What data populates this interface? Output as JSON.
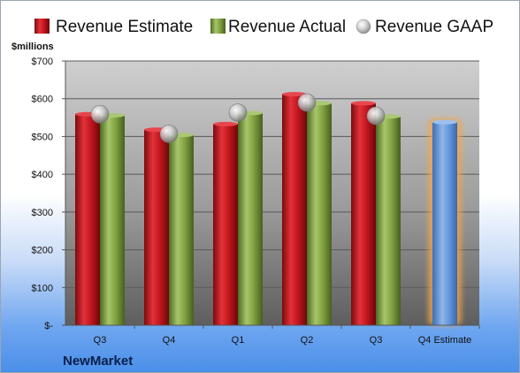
{
  "company": "NewMarket",
  "chart_data": {
    "type": "bar",
    "unit_label": "$millions",
    "categories": [
      "Q3",
      "Q4",
      "Q1",
      "Q2",
      "Q3",
      "Q4 Estimate"
    ],
    "series": [
      {
        "name": "Revenue Estimate",
        "values": [
          559,
          518,
          533,
          612,
          588,
          null
        ],
        "color": "#c0141c"
      },
      {
        "name": "Revenue Actual",
        "values": [
          556,
          504,
          562,
          588,
          553,
          null
        ],
        "color": "#80a040"
      },
      {
        "name": "Revenue GAAP",
        "values": [
          559,
          507,
          563,
          590,
          555,
          null
        ],
        "color": "#b8b8b8"
      }
    ],
    "estimate": {
      "category": "Q4 Estimate",
      "value": 538,
      "color": "#5f93d8",
      "glow": "#f3a649"
    },
    "ylim": [
      0,
      700
    ],
    "yticks": [
      0,
      100,
      200,
      300,
      400,
      500,
      600,
      700
    ],
    "ytick_labels": [
      "$-",
      "$100",
      "$200",
      "$300",
      "$400",
      "$500",
      "$600",
      "$700"
    ],
    "grid": true,
    "legend": "top"
  }
}
